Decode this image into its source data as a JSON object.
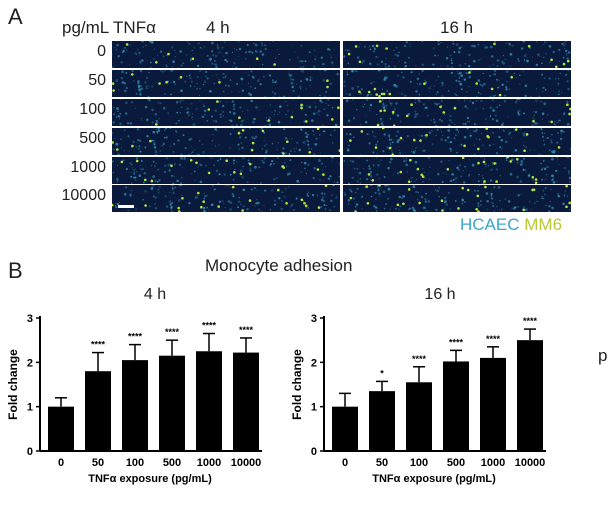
{
  "panel_a": {
    "letter": "A",
    "concentration_header": "pg/mL TNFα",
    "time_labels": [
      "4 h",
      "16 h"
    ],
    "concentrations": [
      "0",
      "50",
      "100",
      "500",
      "1000",
      "10000"
    ],
    "legend": {
      "hcaec": "HCAEC",
      "mm6": "MM6"
    },
    "colors": {
      "background": "#0a1a3d",
      "cells": "#3aa7c9",
      "monocytes": "#b5e63a"
    }
  },
  "panel_b": {
    "letter": "B",
    "title": "Monocyte adhesion",
    "right_edge_text": "p"
  },
  "chart_data": [
    {
      "type": "bar",
      "title": "4 h",
      "categories": [
        "0",
        "50",
        "100",
        "500",
        "1000",
        "10000"
      ],
      "values": [
        1.0,
        1.8,
        2.05,
        2.15,
        2.25,
        2.22
      ],
      "errors": [
        0.2,
        0.42,
        0.35,
        0.35,
        0.4,
        0.33
      ],
      "significance": [
        "",
        "****",
        "****",
        "****",
        "****",
        "****"
      ],
      "xlabel": "TNFα exposure (pg/mL)",
      "ylabel": "Fold change",
      "ylim": [
        0,
        3
      ],
      "yticks": [
        "0",
        "1",
        "2",
        "3"
      ],
      "grid": false,
      "bar_color": "#000000"
    },
    {
      "type": "bar",
      "title": "16 h",
      "categories": [
        "0",
        "50",
        "100",
        "500",
        "1000",
        "10000"
      ],
      "values": [
        1.0,
        1.35,
        1.55,
        2.02,
        2.1,
        2.5
      ],
      "errors": [
        0.3,
        0.22,
        0.35,
        0.25,
        0.25,
        0.25
      ],
      "significance": [
        "",
        "*",
        "****",
        "****",
        "****",
        "****"
      ],
      "xlabel": "TNFα exposure (pg/mL)",
      "ylabel": "Fold change",
      "ylim": [
        0,
        3
      ],
      "yticks": [
        "0",
        "1",
        "2",
        "3"
      ],
      "grid": false,
      "bar_color": "#000000"
    }
  ]
}
